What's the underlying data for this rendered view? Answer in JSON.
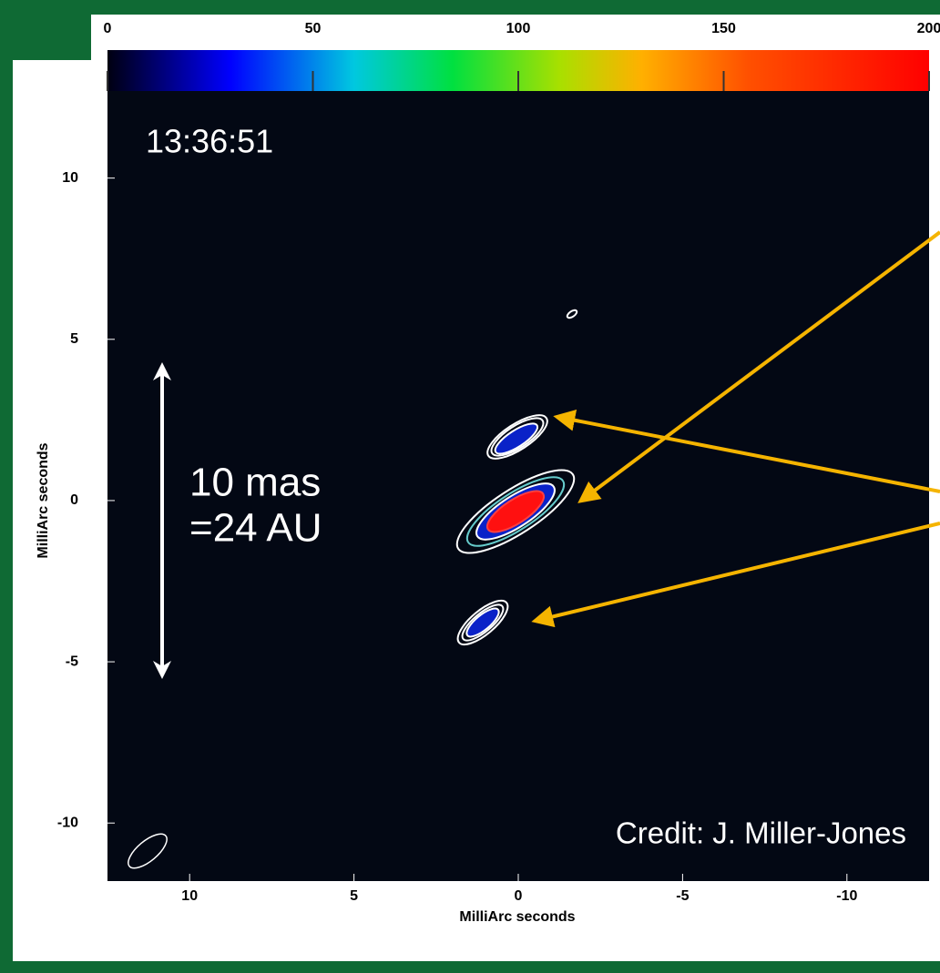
{
  "chart_data": {
    "type": "image",
    "xlabel": "MilliArc seconds",
    "ylabel": "MilliArc seconds",
    "xlim": [
      12.5,
      -12.5
    ],
    "xticks": [
      10,
      5,
      0,
      -5,
      -10
    ],
    "ylim": [
      -11.8,
      12.7
    ],
    "yticks": [
      10,
      5,
      0,
      -5,
      -10
    ],
    "clim": [
      0,
      200
    ],
    "cticks": [
      0,
      50,
      100,
      150,
      200
    ],
    "annotations": [
      "13:36:51",
      "10 mas",
      "=24 AU",
      "Credit: J. Miller-Jones"
    ]
  }
}
